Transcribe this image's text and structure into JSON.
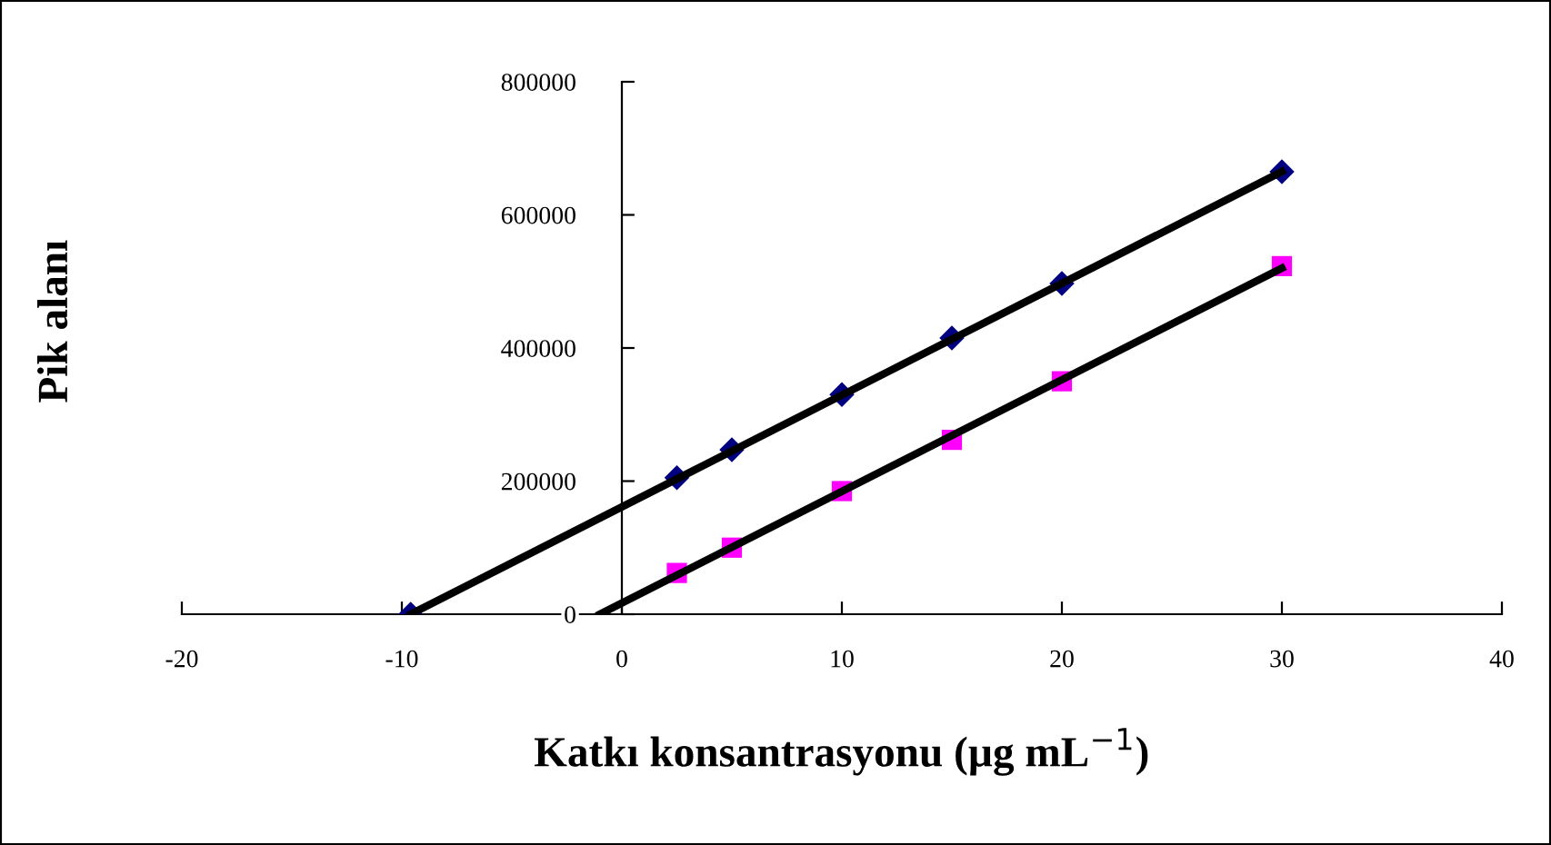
{
  "chart_data": {
    "type": "scatter",
    "xlabel": "Katkı konsantrasyonu (µg mL$^{−1}$)",
    "ylabel": "Pik alanı",
    "xlim": [
      -20,
      40
    ],
    "xticks": [
      -20,
      -10,
      0,
      10,
      20,
      30,
      40
    ],
    "ylim": [
      0,
      800000
    ],
    "yticks": [
      0,
      200000,
      400000,
      600000,
      800000
    ],
    "grid": false,
    "series": [
      {
        "marker": "diamond",
        "color": "#000080",
        "x": [
          -9.6,
          2.5,
          5,
          10,
          15,
          20,
          30
        ],
        "values": [
          0,
          205000,
          247000,
          330000,
          415000,
          497000,
          665000
        ]
      },
      {
        "marker": "square",
        "color": "#ff00ff",
        "x": [
          2.5,
          5,
          10,
          15,
          20,
          30
        ],
        "values": [
          62000,
          100000,
          185000,
          262000,
          350000,
          523000
        ]
      },
      {
        "type": "line",
        "color": "#000000",
        "x": [
          -9.6,
          30
        ],
        "values": [
          0,
          665000
        ]
      },
      {
        "type": "line",
        "color": "#000000",
        "x": [
          -1.0,
          30
        ],
        "values": [
          0,
          520000
        ]
      }
    ]
  }
}
